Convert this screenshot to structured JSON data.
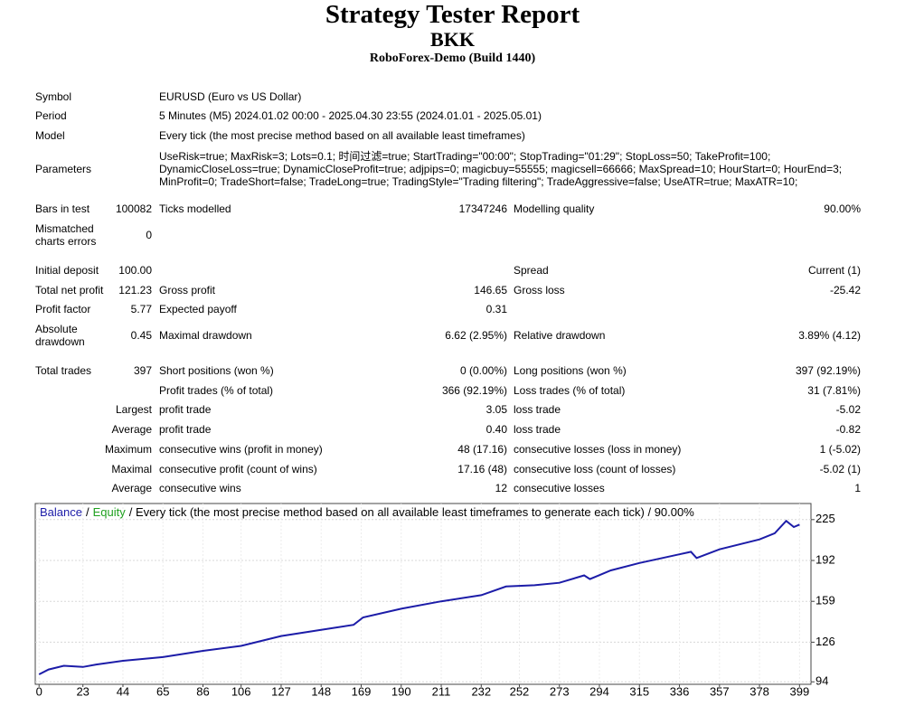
{
  "header": {
    "title": "Strategy Tester Report",
    "subtitle": "BKK",
    "server": "RoboForex-Demo (Build 1440)"
  },
  "table": {
    "info": [
      [
        "Symbol",
        "EURUSD (Euro vs US Dollar)"
      ],
      [
        "Period",
        "5 Minutes (M5) 2024.01.02 00:00 - 2025.04.30 23:55 (2024.01.01 - 2025.05.01)"
      ],
      [
        "Model",
        "Every tick (the most precise method based on all available least timeframes)"
      ],
      [
        "Parameters",
        [
          "UseRisk=true; MaxRisk=3; Lots=0.1; 时间过滤=true; StartTrading=\"00:00\"; StopTrading=\"01:29\"; StopLoss=50; TakeProfit=100;",
          "DynamicCloseLoss=true; DynamicCloseProfit=true; adjpips=0; magicbuy=55555; magicsell=66666; MaxSpread=10; HourStart=0; HourEnd=3;",
          "MinProfit=0; TradeShort=false; TradeLong=true; TradingStyle=\"Trading filtering\"; TradeAggressive=false; UseATR=true; MaxATR=10;"
        ]
      ]
    ],
    "rows": [
      [
        "Bars in test",
        "100082",
        "Ticks modelled",
        "17347246",
        "Modelling quality",
        "90.00%"
      ],
      [
        "Mismatched charts errors",
        "0"
      ],
      [
        "Initial deposit",
        "100.00",
        null,
        null,
        "Spread",
        "Current (1)"
      ],
      [
        "Total net profit",
        "121.23",
        "Gross profit",
        "146.65",
        "Gross loss",
        "-25.42"
      ],
      [
        "Profit factor",
        "5.77",
        "Expected payoff",
        "0.31"
      ],
      [
        "Absolute drawdown",
        "0.45",
        "Maximal drawdown",
        "6.62 (2.95%)",
        "Relative drawdown",
        "3.89% (4.12)"
      ],
      [
        "Total trades",
        "397",
        "Short positions (won %)",
        "0 (0.00%)",
        "Long positions (won %)",
        "397 (92.19%)"
      ],
      [
        null,
        null,
        "Profit trades (% of total)",
        "366 (92.19%)",
        "Loss trades (% of total)",
        "31 (7.81%)"
      ],
      [
        null,
        "Largest",
        "profit trade",
        "3.05",
        "loss trade",
        "-5.02"
      ],
      [
        null,
        "Average",
        "profit trade",
        "0.40",
        "loss trade",
        "-0.82"
      ],
      [
        null,
        "Maximum",
        "consecutive wins (profit in money)",
        "48 (17.16)",
        "consecutive losses (loss in money)",
        "1 (-5.02)"
      ],
      [
        null,
        "Maximal",
        "consecutive profit (count of wins)",
        "17.16 (48)",
        "consecutive loss (count of losses)",
        "-5.02 (1)"
      ],
      [
        null,
        "Average",
        "consecutive wins",
        "12",
        "consecutive losses",
        "1"
      ]
    ]
  },
  "chart_data": {
    "type": "line",
    "legend": [
      {
        "name": "Balance",
        "color": "#1c1ca8"
      },
      {
        "name": "Equity",
        "color": "#1fa01f"
      }
    ],
    "separator": "/",
    "caption": "/ Every tick (the most precise method based on all available least timeframes to generate each tick) / 90.00%",
    "x": [
      0,
      5,
      13,
      23,
      30,
      44,
      65,
      86,
      106,
      127,
      148,
      165,
      170,
      190,
      211,
      232,
      245,
      260,
      273,
      286,
      289,
      300,
      315,
      336,
      342,
      345,
      357,
      378,
      386,
      392,
      396,
      399
    ],
    "series": [
      {
        "name": "Balance",
        "color": "#1c1ca8",
        "values": [
          100,
          104,
          107,
          106,
          108,
          111,
          114,
          119,
          123,
          131,
          136,
          140,
          146,
          153,
          159,
          164,
          171,
          172,
          174,
          180,
          177,
          184,
          190,
          197,
          199,
          194,
          201,
          209,
          214,
          224,
          219,
          221
        ]
      }
    ],
    "xlim": [
      -2,
      405
    ],
    "ylim": [
      92,
      238
    ],
    "xticks": [
      0,
      23,
      44,
      65,
      86,
      106,
      127,
      148,
      169,
      190,
      211,
      232,
      252,
      273,
      294,
      315,
      336,
      357,
      378,
      399
    ],
    "yticks": [
      94,
      126,
      159,
      192,
      225
    ],
    "grid": true
  }
}
